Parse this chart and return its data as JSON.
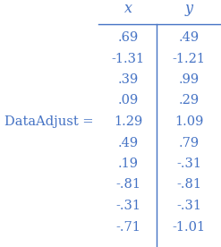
{
  "label": "DataAdjust =",
  "col_headers": [
    "x",
    "y"
  ],
  "rows": [
    [
      ".69",
      ".49"
    ],
    [
      "-1.31",
      "-1.21"
    ],
    [
      ".39",
      ".99"
    ],
    [
      ".09",
      ".29"
    ],
    [
      "1.29",
      "1.09"
    ],
    [
      ".49",
      ".79"
    ],
    [
      ".19",
      "-.31"
    ],
    [
      "-.81",
      "-.81"
    ],
    [
      "-.31",
      "-.31"
    ],
    [
      "-.71",
      "-1.01"
    ]
  ],
  "label_row": 4,
  "bg_color": "#ffffff",
  "text_color": "#4472c4",
  "header_color": "#4472c4",
  "font_size": 10.5,
  "header_font_size": 11.5,
  "label_font_size": 10.5
}
